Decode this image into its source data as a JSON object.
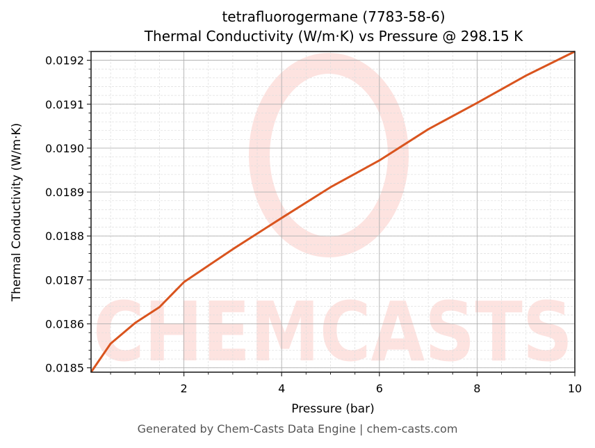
{
  "title": {
    "line1": "tetrafluorogermane (7783-58-6)",
    "line2": "Thermal Conductivity (W/m·K) vs Pressure @ 298.15 K"
  },
  "footer": "Generated by Chem-Casts Data Engine | chem-casts.com",
  "watermark": "CHEMCASTS",
  "colors": {
    "line": "#d9541e",
    "watermark": "#fde3e0",
    "major_grid": "#b0b0b0",
    "minor_grid": "#dddddd",
    "footer_text": "#555555"
  },
  "chart_data": {
    "type": "line",
    "title": "tetrafluorogermane (7783-58-6) Thermal Conductivity (W/m·K) vs Pressure @ 298.15 K",
    "xlabel": "Pressure (bar)",
    "ylabel": "Thermal Conductivity (W/m·K)",
    "xlim": [
      0.1,
      10
    ],
    "ylim": [
      0.01849,
      0.01922
    ],
    "x_ticks": [
      2,
      4,
      6,
      8,
      10
    ],
    "x_tick_labels": [
      "2",
      "4",
      "6",
      "8",
      "10"
    ],
    "y_ticks": [
      0.0185,
      0.0186,
      0.0187,
      0.0188,
      0.0189,
      0.019,
      0.0191,
      0.0192
    ],
    "y_tick_labels": [
      "0.0185",
      "0.0186",
      "0.0187",
      "0.0188",
      "0.0189",
      "0.0190",
      "0.0191",
      "0.0192"
    ],
    "x_minor_step": 0.5,
    "y_minor_step": 2e-05,
    "grid": true,
    "legend": null,
    "series": [
      {
        "name": "Thermal Conductivity",
        "x": [
          0.1,
          0.5,
          1.0,
          1.5,
          2.0,
          3.0,
          4.0,
          5.0,
          6.0,
          7.0,
          8.0,
          9.0,
          10.0
        ],
        "values": [
          0.01849,
          0.018555,
          0.018602,
          0.018638,
          0.018695,
          0.01877,
          0.018841,
          0.018911,
          0.018972,
          0.019043,
          0.019103,
          0.019165,
          0.01922
        ]
      }
    ]
  }
}
